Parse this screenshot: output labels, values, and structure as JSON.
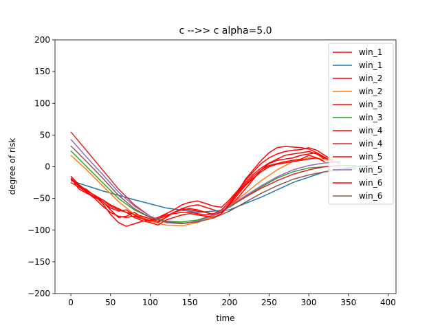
{
  "chart_data": {
    "type": "line",
    "title": "c -->> c  alpha=5.0",
    "xlabel": "time",
    "ylabel": "degree of risk",
    "xlim": [
      -20,
      410
    ],
    "ylim": [
      -200,
      200
    ],
    "xticks": [
      0,
      50,
      100,
      150,
      200,
      250,
      300,
      350,
      400
    ],
    "yticks": [
      -200,
      -150,
      -100,
      -50,
      0,
      50,
      100,
      150,
      200
    ],
    "ytick_labels": [
      "−200",
      "−150",
      "−100",
      "−50",
      "0",
      "50",
      "100",
      "150",
      "200"
    ],
    "legend_position": "top-right",
    "series": [
      {
        "name": "win_1",
        "color": "#ff0000",
        "points": [
          [
            0,
            -18
          ],
          [
            10,
            -35
          ],
          [
            20,
            -42
          ],
          [
            30,
            -48
          ],
          [
            40,
            -55
          ],
          [
            50,
            -68
          ],
          [
            60,
            -80
          ],
          [
            70,
            -78
          ],
          [
            80,
            -72
          ],
          [
            90,
            -80
          ],
          [
            100,
            -85
          ],
          [
            110,
            -88
          ],
          [
            120,
            -80
          ],
          [
            130,
            -72
          ],
          [
            140,
            -66
          ],
          [
            150,
            -62
          ],
          [
            160,
            -60
          ],
          [
            170,
            -64
          ],
          [
            180,
            -68
          ],
          [
            190,
            -72
          ],
          [
            200,
            -60
          ],
          [
            210,
            -40
          ],
          [
            220,
            -20
          ],
          [
            230,
            -5
          ],
          [
            240,
            10
          ],
          [
            250,
            22
          ],
          [
            260,
            30
          ],
          [
            270,
            32
          ],
          [
            280,
            31
          ],
          [
            290,
            30
          ],
          [
            300,
            28
          ],
          [
            310,
            22
          ],
          [
            320,
            14
          ],
          [
            330,
            8
          ]
        ]
      },
      {
        "name": "win_1",
        "color": "#1f77b4",
        "points": [
          [
            0,
            -22
          ],
          [
            40,
            -38
          ],
          [
            80,
            -52
          ],
          [
            120,
            -65
          ],
          [
            160,
            -72
          ],
          [
            200,
            -68
          ],
          [
            240,
            -48
          ],
          [
            280,
            -25
          ],
          [
            320,
            -8
          ],
          [
            360,
            0
          ],
          [
            380,
            2
          ]
        ]
      },
      {
        "name": "win_2",
        "color": "#ff0000",
        "points": [
          [
            0,
            -20
          ],
          [
            10,
            -30
          ],
          [
            20,
            -40
          ],
          [
            30,
            -48
          ],
          [
            40,
            -52
          ],
          [
            50,
            -62
          ],
          [
            60,
            -68
          ],
          [
            70,
            -72
          ],
          [
            80,
            -75
          ],
          [
            90,
            -78
          ],
          [
            100,
            -82
          ],
          [
            110,
            -86
          ],
          [
            120,
            -80
          ],
          [
            130,
            -72
          ],
          [
            140,
            -66
          ],
          [
            150,
            -68
          ],
          [
            160,
            -70
          ],
          [
            170,
            -72
          ],
          [
            180,
            -75
          ],
          [
            190,
            -70
          ],
          [
            200,
            -62
          ],
          [
            210,
            -50
          ],
          [
            220,
            -35
          ],
          [
            230,
            -20
          ],
          [
            240,
            -5
          ],
          [
            250,
            5
          ],
          [
            260,
            10
          ],
          [
            270,
            12
          ],
          [
            280,
            14
          ],
          [
            290,
            18
          ],
          [
            300,
            20
          ],
          [
            310,
            22
          ],
          [
            320,
            15
          ],
          [
            330,
            8
          ]
        ]
      },
      {
        "name": "win_2",
        "color": "#ff7f0e",
        "points": [
          [
            0,
            18
          ],
          [
            20,
            -5
          ],
          [
            40,
            -30
          ],
          [
            60,
            -55
          ],
          [
            80,
            -75
          ],
          [
            100,
            -86
          ],
          [
            120,
            -92
          ],
          [
            140,
            -93
          ],
          [
            160,
            -88
          ],
          [
            180,
            -78
          ],
          [
            200,
            -62
          ],
          [
            220,
            -42
          ],
          [
            240,
            -22
          ],
          [
            260,
            -5
          ],
          [
            280,
            8
          ],
          [
            300,
            14
          ],
          [
            320,
            12
          ],
          [
            340,
            5
          ]
        ]
      },
      {
        "name": "win_3",
        "color": "#ff0000",
        "points": [
          [
            0,
            -15
          ],
          [
            10,
            -28
          ],
          [
            20,
            -38
          ],
          [
            30,
            -45
          ],
          [
            40,
            -55
          ],
          [
            50,
            -65
          ],
          [
            60,
            -70
          ],
          [
            70,
            -68
          ],
          [
            80,
            -76
          ],
          [
            90,
            -82
          ],
          [
            100,
            -86
          ],
          [
            110,
            -80
          ],
          [
            120,
            -74
          ],
          [
            130,
            -68
          ],
          [
            140,
            -60
          ],
          [
            150,
            -56
          ],
          [
            160,
            -54
          ],
          [
            170,
            -58
          ],
          [
            180,
            -62
          ],
          [
            190,
            -64
          ],
          [
            200,
            -52
          ],
          [
            210,
            -38
          ],
          [
            220,
            -22
          ],
          [
            230,
            -8
          ],
          [
            240,
            5
          ],
          [
            250,
            14
          ],
          [
            260,
            20
          ],
          [
            270,
            24
          ],
          [
            280,
            26
          ],
          [
            290,
            27
          ],
          [
            300,
            30
          ],
          [
            310,
            26
          ],
          [
            320,
            18
          ],
          [
            330,
            10
          ]
        ]
      },
      {
        "name": "win_3",
        "color": "#2ca02c",
        "points": [
          [
            0,
            25
          ],
          [
            20,
            0
          ],
          [
            40,
            -25
          ],
          [
            60,
            -50
          ],
          [
            80,
            -68
          ],
          [
            100,
            -80
          ],
          [
            120,
            -86
          ],
          [
            140,
            -87
          ],
          [
            160,
            -84
          ],
          [
            180,
            -76
          ],
          [
            200,
            -64
          ],
          [
            220,
            -48
          ],
          [
            240,
            -32
          ],
          [
            260,
            -18
          ],
          [
            280,
            -8
          ],
          [
            300,
            -2
          ],
          [
            320,
            0
          ],
          [
            340,
            2
          ],
          [
            360,
            2
          ]
        ]
      },
      {
        "name": "win_4",
        "color": "#ff0000",
        "points": [
          [
            0,
            -25
          ],
          [
            10,
            -32
          ],
          [
            20,
            -40
          ],
          [
            30,
            -50
          ],
          [
            40,
            -62
          ],
          [
            50,
            -72
          ],
          [
            60,
            -78
          ],
          [
            70,
            -80
          ],
          [
            80,
            -78
          ],
          [
            90,
            -82
          ],
          [
            100,
            -86
          ],
          [
            110,
            -82
          ],
          [
            120,
            -78
          ],
          [
            130,
            -72
          ],
          [
            140,
            -68
          ],
          [
            150,
            -66
          ],
          [
            160,
            -68
          ],
          [
            170,
            -72
          ],
          [
            180,
            -76
          ],
          [
            190,
            -72
          ],
          [
            200,
            -58
          ],
          [
            210,
            -42
          ],
          [
            220,
            -28
          ],
          [
            230,
            -15
          ],
          [
            240,
            -5
          ],
          [
            250,
            2
          ],
          [
            260,
            5
          ],
          [
            270,
            8
          ],
          [
            280,
            10
          ],
          [
            290,
            12
          ],
          [
            300,
            18
          ],
          [
            310,
            14
          ],
          [
            320,
            8
          ]
        ]
      },
      {
        "name": "win_4",
        "color": "#d62728",
        "points": [
          [
            0,
            55
          ],
          [
            20,
            25
          ],
          [
            40,
            -5
          ],
          [
            60,
            -35
          ],
          [
            80,
            -60
          ],
          [
            100,
            -78
          ],
          [
            120,
            -88
          ],
          [
            140,
            -90
          ],
          [
            160,
            -86
          ],
          [
            180,
            -76
          ],
          [
            200,
            -62
          ],
          [
            220,
            -48
          ],
          [
            240,
            -34
          ],
          [
            260,
            -22
          ],
          [
            280,
            -12
          ],
          [
            300,
            -5
          ],
          [
            320,
            0
          ],
          [
            340,
            2
          ]
        ]
      },
      {
        "name": "win_5",
        "color": "#ff0000",
        "points": [
          [
            0,
            -18
          ],
          [
            10,
            -30
          ],
          [
            20,
            -36
          ],
          [
            30,
            -46
          ],
          [
            40,
            -58
          ],
          [
            50,
            -75
          ],
          [
            60,
            -88
          ],
          [
            70,
            -94
          ],
          [
            80,
            -90
          ],
          [
            90,
            -86
          ],
          [
            100,
            -84
          ],
          [
            110,
            -80
          ],
          [
            120,
            -76
          ],
          [
            130,
            -74
          ],
          [
            140,
            -72
          ],
          [
            150,
            -72
          ],
          [
            160,
            -74
          ],
          [
            170,
            -76
          ],
          [
            180,
            -74
          ],
          [
            190,
            -68
          ],
          [
            200,
            -55
          ],
          [
            210,
            -40
          ],
          [
            220,
            -25
          ],
          [
            230,
            -12
          ],
          [
            240,
            -2
          ],
          [
            250,
            6
          ],
          [
            260,
            12
          ],
          [
            270,
            18
          ],
          [
            280,
            20
          ],
          [
            290,
            22
          ],
          [
            300,
            24
          ],
          [
            310,
            20
          ],
          [
            320,
            12
          ]
        ]
      },
      {
        "name": "win_5",
        "color": "#9467bd",
        "points": [
          [
            0,
            43
          ],
          [
            20,
            15
          ],
          [
            40,
            -12
          ],
          [
            60,
            -40
          ],
          [
            80,
            -62
          ],
          [
            100,
            -78
          ],
          [
            120,
            -88
          ],
          [
            140,
            -90
          ],
          [
            160,
            -86
          ],
          [
            180,
            -76
          ],
          [
            200,
            -62
          ],
          [
            220,
            -46
          ],
          [
            240,
            -30
          ],
          [
            260,
            -16
          ],
          [
            280,
            -5
          ],
          [
            300,
            2
          ],
          [
            320,
            6
          ],
          [
            340,
            8
          ]
        ]
      },
      {
        "name": "win_6",
        "color": "#ff0000",
        "points": [
          [
            0,
            -20
          ],
          [
            10,
            -28
          ],
          [
            20,
            -38
          ],
          [
            30,
            -45
          ],
          [
            40,
            -52
          ],
          [
            50,
            -60
          ],
          [
            60,
            -66
          ],
          [
            70,
            -72
          ],
          [
            80,
            -80
          ],
          [
            90,
            -85
          ],
          [
            100,
            -88
          ],
          [
            110,
            -92
          ],
          [
            120,
            -84
          ],
          [
            130,
            -80
          ],
          [
            140,
            -76
          ],
          [
            150,
            -74
          ],
          [
            160,
            -76
          ],
          [
            170,
            -78
          ],
          [
            180,
            -80
          ],
          [
            190,
            -74
          ],
          [
            200,
            -60
          ],
          [
            210,
            -45
          ],
          [
            220,
            -30
          ],
          [
            230,
            -18
          ],
          [
            240,
            -8
          ],
          [
            250,
            0
          ],
          [
            260,
            4
          ],
          [
            270,
            6
          ],
          [
            280,
            8
          ],
          [
            290,
            10
          ],
          [
            300,
            12
          ],
          [
            310,
            14
          ],
          [
            320,
            8
          ]
        ]
      },
      {
        "name": "win_6",
        "color": "#8c564b",
        "points": [
          [
            0,
            33
          ],
          [
            20,
            8
          ],
          [
            40,
            -18
          ],
          [
            60,
            -45
          ],
          [
            80,
            -66
          ],
          [
            100,
            -80
          ],
          [
            120,
            -87
          ],
          [
            140,
            -89
          ],
          [
            160,
            -87
          ],
          [
            180,
            -81
          ],
          [
            200,
            -70
          ],
          [
            220,
            -56
          ],
          [
            240,
            -42
          ],
          [
            260,
            -30
          ],
          [
            280,
            -20
          ],
          [
            300,
            -13
          ],
          [
            320,
            -8
          ],
          [
            340,
            -5
          ],
          [
            360,
            -3
          ]
        ]
      }
    ]
  }
}
